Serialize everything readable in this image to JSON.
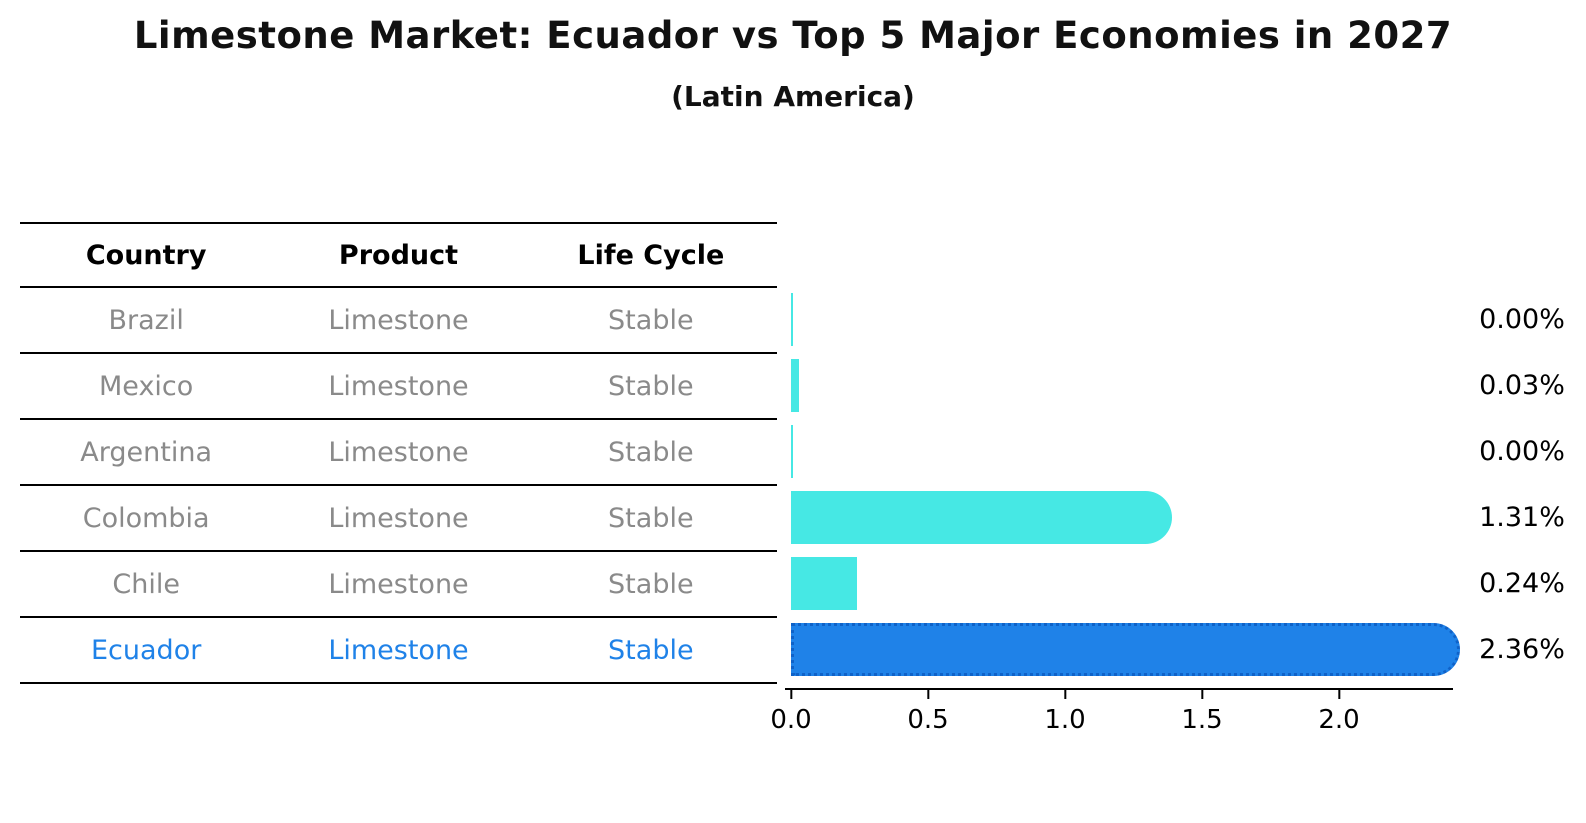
{
  "title": "Limestone Market: Ecuador vs Top 5 Major Economies in 2027",
  "subtitle": "(Latin America)",
  "table": {
    "headers": [
      "Country",
      "Product",
      "Life Cycle"
    ],
    "rows": [
      {
        "country": "Brazil",
        "product": "Limestone",
        "life_cycle": "Stable",
        "highlight": false
      },
      {
        "country": "Mexico",
        "product": "Limestone",
        "life_cycle": "Stable",
        "highlight": false
      },
      {
        "country": "Argentina",
        "product": "Limestone",
        "life_cycle": "Stable",
        "highlight": false
      },
      {
        "country": "Colombia",
        "product": "Limestone",
        "life_cycle": "Stable",
        "highlight": false
      },
      {
        "country": "Chile",
        "product": "Limestone",
        "life_cycle": "Stable",
        "highlight": false
      },
      {
        "country": "Ecuador",
        "product": "Limestone",
        "life_cycle": "Stable",
        "highlight": true
      }
    ]
  },
  "chart_data": {
    "type": "bar",
    "orientation": "horizontal",
    "categories": [
      "Brazil",
      "Mexico",
      "Argentina",
      "Colombia",
      "Chile",
      "Ecuador"
    ],
    "values": [
      0.0,
      0.03,
      0.0,
      1.31,
      0.24,
      2.36
    ],
    "labels": [
      "0.00%",
      "0.03%",
      "0.00%",
      "1.31%",
      "0.24%",
      "2.36%"
    ],
    "x_ticks": [
      "0.0",
      "0.5",
      "1.0",
      "1.5",
      "2.0"
    ],
    "x_tick_values": [
      0.0,
      0.5,
      1.0,
      1.5,
      2.0
    ],
    "xlim": [
      0,
      2.44
    ],
    "highlight_index": 5,
    "legend": "none",
    "grid": false,
    "colors": {
      "bar_default": "#46e8e4",
      "bar_highlight": "#1f82e8",
      "bar_highlight_border": "#0f62c8",
      "row_text": "#8a8a8a",
      "highlight_text": "#1f82e8"
    }
  }
}
